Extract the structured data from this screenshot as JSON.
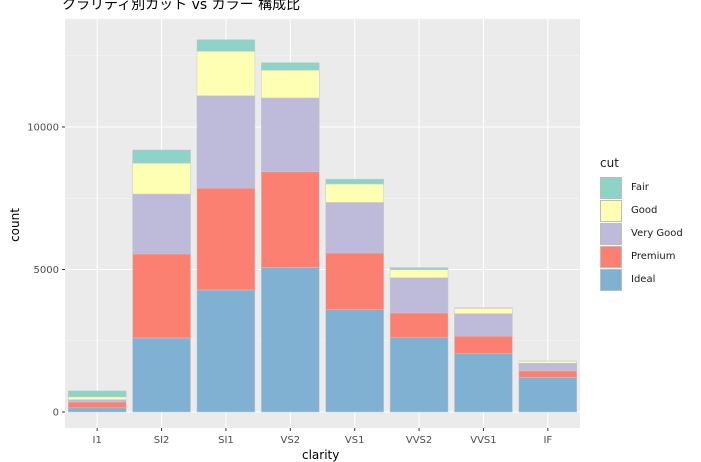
{
  "chart_data": {
    "type": "bar",
    "stacked": true,
    "title": "クラリティ別カット vs カラー 構成比",
    "xlabel": "clarity",
    "ylabel": "count",
    "ylim": [
      0,
      13500
    ],
    "yticks": [
      0,
      5000,
      10000
    ],
    "categories": [
      "I1",
      "SI2",
      "SI1",
      "VS2",
      "VS1",
      "VVS2",
      "VVS1",
      "IF"
    ],
    "legend_title": "cut",
    "legend_position": "right",
    "grid": true,
    "series": [
      {
        "name": "Ideal",
        "color": "#80B1D3",
        "values": [
          146,
          2598,
          4282,
          5071,
          3589,
          2606,
          2047,
          1212
        ]
      },
      {
        "name": "Premium",
        "color": "#FB8072",
        "values": [
          205,
          2949,
          3575,
          3357,
          1989,
          870,
          616,
          230
        ]
      },
      {
        "name": "Very Good",
        "color": "#BEBADA",
        "values": [
          84,
          2100,
          3240,
          2591,
          1775,
          1235,
          789,
          268
        ]
      },
      {
        "name": "Good",
        "color": "#FFFFB3",
        "values": [
          96,
          1081,
          1560,
          978,
          648,
          286,
          186,
          71
        ]
      },
      {
        "name": "Fair",
        "color": "#8DD3C7",
        "values": [
          210,
          466,
          408,
          261,
          170,
          69,
          17,
          9
        ]
      }
    ],
    "legend_order": [
      "Fair",
      "Good",
      "Very Good",
      "Premium",
      "Ideal"
    ]
  }
}
